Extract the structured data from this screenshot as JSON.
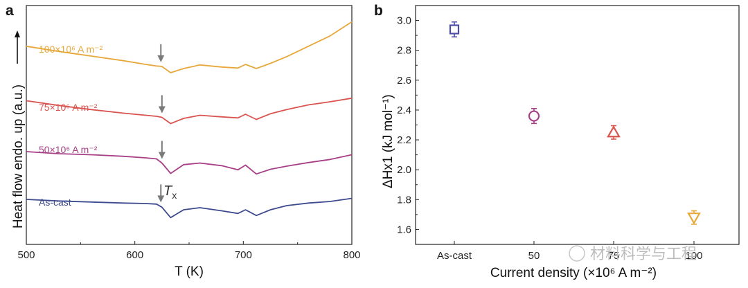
{
  "watermark": "材料科学与工程",
  "chart_data": [
    {
      "panel": "a",
      "type": "line",
      "xlabel": "T (K)",
      "ylabel": "Heat flow endo. up (a.u.)",
      "xlim": [
        500,
        800
      ],
      "xticks": [
        500,
        600,
        700,
        800
      ],
      "tx_label": "Tx",
      "series": [
        {
          "name": "100×10⁶ A m⁻²",
          "color": "#E7A83A",
          "x": [
            500,
            530,
            560,
            590,
            610,
            620,
            625,
            633,
            645,
            660,
            680,
            695,
            702,
            712,
            725,
            740,
            760,
            780,
            800
          ],
          "y": [
            3.55,
            3.45,
            3.36,
            3.27,
            3.2,
            3.17,
            3.16,
            3.04,
            3.12,
            3.19,
            3.15,
            3.13,
            3.2,
            3.12,
            3.22,
            3.35,
            3.55,
            3.75,
            4.02
          ]
        },
        {
          "name": "75×10⁶ A m⁻²",
          "color": "#D9534F",
          "x": [
            500,
            530,
            560,
            590,
            610,
            620,
            625,
            633,
            645,
            660,
            680,
            695,
            702,
            712,
            725,
            740,
            760,
            780,
            800
          ],
          "y": [
            2.5,
            2.41,
            2.33,
            2.26,
            2.22,
            2.2,
            2.18,
            2.06,
            2.16,
            2.22,
            2.19,
            2.17,
            2.24,
            2.14,
            2.25,
            2.33,
            2.42,
            2.48,
            2.55
          ]
        },
        {
          "name": "50×10⁶ A m⁻²",
          "color": "#A63F86",
          "x": [
            500,
            530,
            560,
            590,
            610,
            620,
            625,
            633,
            645,
            660,
            680,
            695,
            702,
            712,
            725,
            740,
            760,
            780,
            800
          ],
          "y": [
            1.52,
            1.48,
            1.46,
            1.43,
            1.4,
            1.38,
            1.3,
            1.1,
            1.27,
            1.3,
            1.25,
            1.17,
            1.26,
            1.09,
            1.18,
            1.24,
            1.31,
            1.37,
            1.46
          ]
        },
        {
          "name": "As-cast",
          "color": "#3D4A8E",
          "x": [
            500,
            530,
            560,
            590,
            610,
            620,
            625,
            633,
            645,
            660,
            680,
            695,
            702,
            712,
            725,
            740,
            760,
            780,
            800
          ],
          "y": [
            0.6,
            0.57,
            0.55,
            0.53,
            0.52,
            0.51,
            0.45,
            0.25,
            0.4,
            0.44,
            0.38,
            0.33,
            0.4,
            0.29,
            0.4,
            0.48,
            0.53,
            0.56,
            0.62
          ]
        }
      ],
      "arrows_at_x": [
        624,
        625,
        625,
        624
      ]
    },
    {
      "panel": "b",
      "type": "scatter",
      "xlabel": "Current density (×10⁶ A m⁻²)",
      "ylabel": "ΔHx1 (kJ mol⁻¹)",
      "ylim": [
        1.5,
        3.1
      ],
      "yticks": [
        1.6,
        1.8,
        2.0,
        2.2,
        2.4,
        2.6,
        2.8,
        3.0
      ],
      "categories": [
        "As-cast",
        "50",
        "75",
        "100"
      ],
      "points": [
        {
          "category": "As-cast",
          "value": 2.94,
          "error": 0.05,
          "marker": "square",
          "color": "#4D4DA6"
        },
        {
          "category": "50",
          "value": 2.36,
          "error": 0.05,
          "marker": "circle",
          "color": "#A63F86"
        },
        {
          "category": "75",
          "value": 2.25,
          "error": 0.045,
          "marker": "triangle-up",
          "color": "#D9534F"
        },
        {
          "category": "100",
          "value": 1.68,
          "error": 0.045,
          "marker": "triangle-down",
          "color": "#E7A83A"
        }
      ]
    }
  ]
}
